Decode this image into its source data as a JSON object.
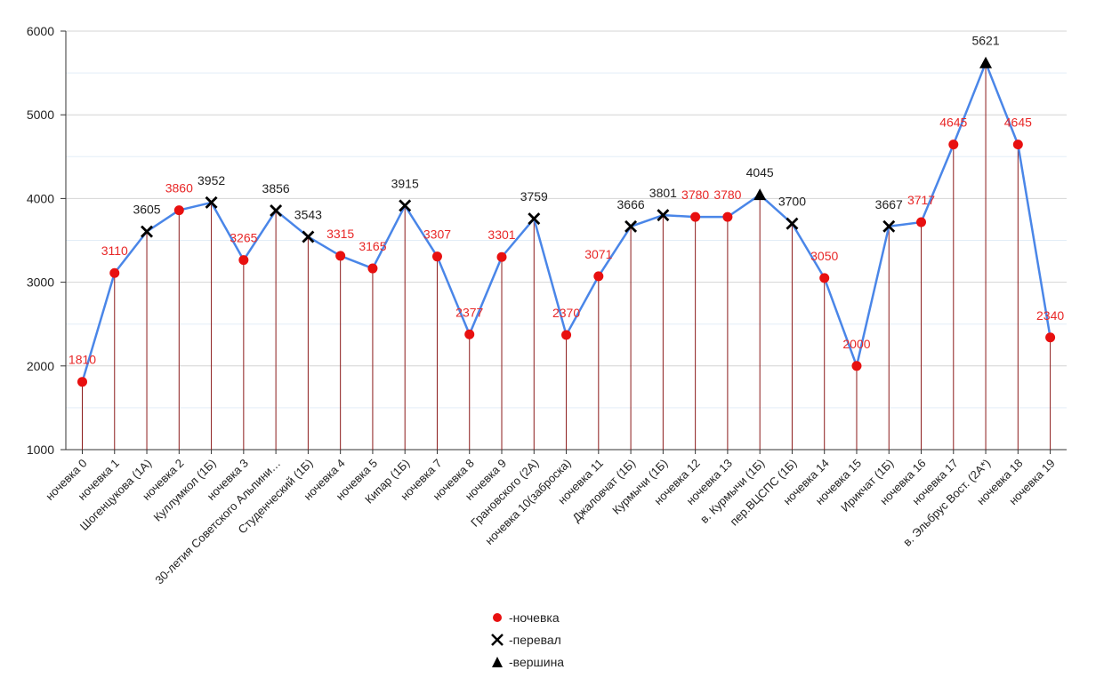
{
  "chart_data": {
    "type": "line",
    "title": "",
    "xlabel": "",
    "ylabel": "",
    "ylim": [
      1000,
      6000
    ],
    "yticks": [
      1000,
      2000,
      3000,
      4000,
      5000,
      6000
    ],
    "grid": true,
    "line_color": "#4a86e8",
    "drop_line_color": "#8b1a1a",
    "label_color_camp": "#e82727",
    "label_color_other": "#222222",
    "marker_color_camp": "#e81010",
    "marker_color_other": "#000000",
    "categories": [
      "ночевка 0",
      "ночевка 1",
      "Шогенцукова (1А)",
      "ночевка 2",
      "Куллумкол (1Б)",
      "ночевка 3",
      "30-летия Советского Альпини…",
      "Студенческий (1Б)",
      "ночевка 4",
      "ночевка 5",
      "Кипар (1Б)",
      "ночевка 7",
      "ночевка 8",
      "ночевка 9",
      "Грановского (2А)",
      "ночевка 10(заброска)",
      "ночевка 11",
      "Джаловчат (1Б)",
      "Курмычи (1Б)",
      "ночевка 12",
      "ночевка 13",
      "в. Курмычи (1Б)",
      "пер.ВЦСПС (1Б)",
      "ночевка 14",
      "ночевка 15",
      "Ирикчат (1Б)",
      "ночевка 16",
      "ночевка 17",
      "в. Эльбрус Вост. (2А*)",
      "ночевка 18",
      "ночевка 19"
    ],
    "values": [
      1810,
      3110,
      3605,
      3860,
      3952,
      3265,
      3856,
      3543,
      3315,
      3165,
      3915,
      3307,
      2377,
      3301,
      3759,
      2370,
      3071,
      3666,
      3801,
      3780,
      3780,
      4045,
      3700,
      3050,
      2000,
      3667,
      3717,
      4645,
      5621,
      4645,
      2340
    ],
    "point_types": [
      "camp",
      "camp",
      "pass",
      "camp",
      "pass",
      "camp",
      "pass",
      "pass",
      "camp",
      "camp",
      "pass",
      "camp",
      "camp",
      "camp",
      "pass",
      "camp",
      "camp",
      "pass",
      "pass",
      "camp",
      "camp",
      "peak",
      "pass",
      "camp",
      "camp",
      "pass",
      "camp",
      "camp",
      "peak",
      "camp",
      "camp"
    ],
    "legend_position": "bottom",
    "legend": [
      {
        "type": "camp",
        "label": "-ночевка"
      },
      {
        "type": "pass",
        "label": "-перевал"
      },
      {
        "type": "peak",
        "label": "-вершина"
      }
    ]
  }
}
